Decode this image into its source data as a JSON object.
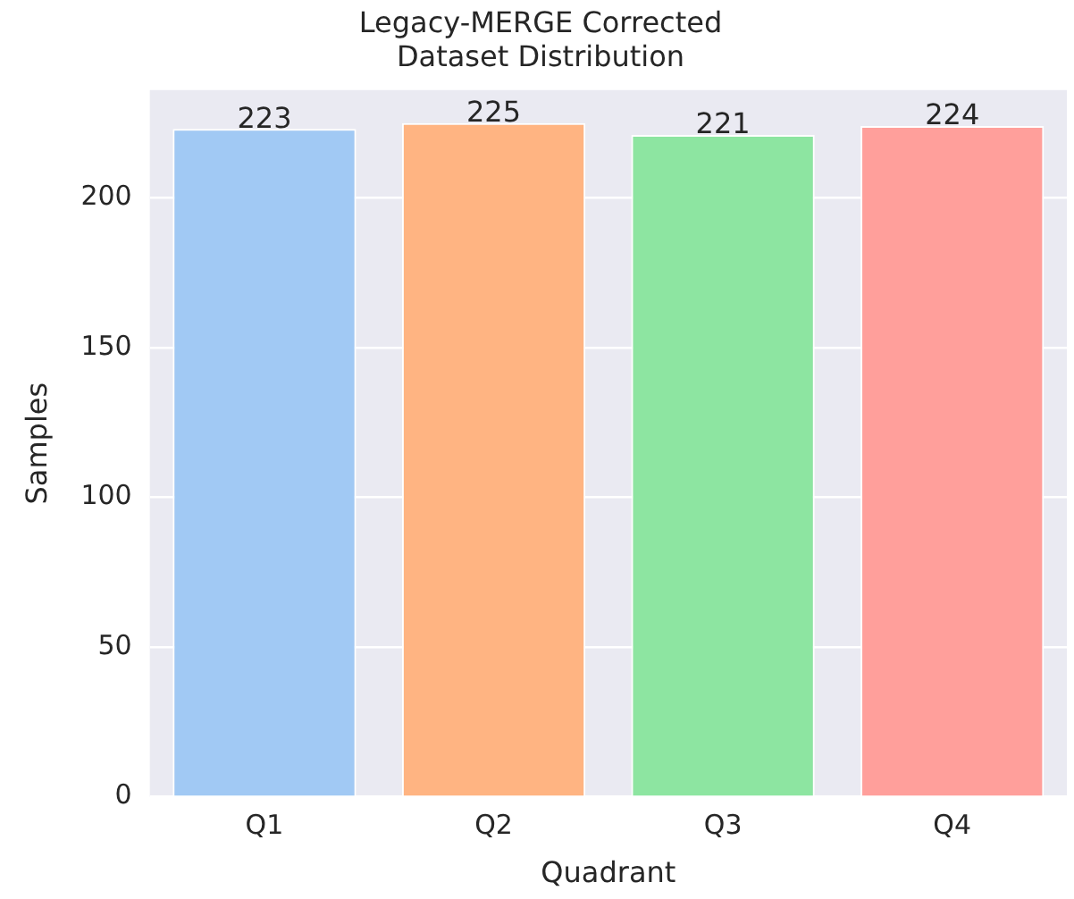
{
  "chart_data": {
    "type": "bar",
    "title": "Legacy-MERGE Corrected\nDataset Distribution",
    "xlabel": "Quadrant",
    "ylabel": "Samples",
    "categories": [
      "Q1",
      "Q2",
      "Q3",
      "Q4"
    ],
    "values": [
      223,
      225,
      221,
      224
    ],
    "colors": [
      "#a1c9f4",
      "#ffb482",
      "#8de5a1",
      "#ff9f9b"
    ],
    "ylim": [
      0,
      236
    ],
    "yticks": [
      0,
      50,
      100,
      150,
      200
    ],
    "grid": "y",
    "data_labels": true
  }
}
